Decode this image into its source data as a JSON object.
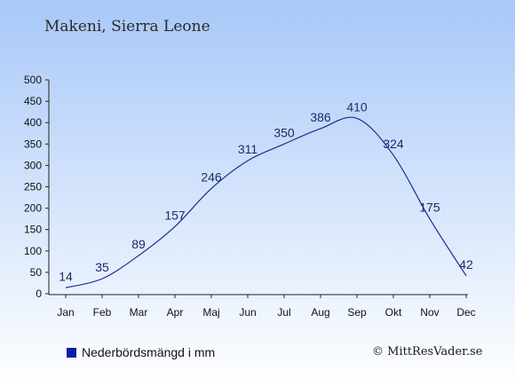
{
  "header": {
    "title": "Makeni, Sierra Leone"
  },
  "legend": {
    "label": "Nederbördsmängd i mm",
    "color": "#0a1fa0"
  },
  "footer": {
    "copyright": "© MittResVader.se"
  },
  "colors": {
    "line": "#1f2a8c",
    "bg_top": "#a8c8f8",
    "bg_bottom": "#ffffff"
  },
  "chart_data": {
    "type": "line",
    "categories": [
      "Jan",
      "Feb",
      "Mar",
      "Apr",
      "Maj",
      "Jun",
      "Jul",
      "Aug",
      "Sep",
      "Okt",
      "Nov",
      "Dec"
    ],
    "values": [
      14,
      35,
      89,
      157,
      246,
      311,
      350,
      386,
      410,
      324,
      175,
      42
    ],
    "ylim": [
      0,
      500
    ],
    "yticks": [
      0,
      50,
      100,
      150,
      200,
      250,
      300,
      350,
      400,
      450,
      500
    ],
    "data_labels": true,
    "grid": false,
    "title": "",
    "xlabel": "",
    "ylabel": ""
  }
}
